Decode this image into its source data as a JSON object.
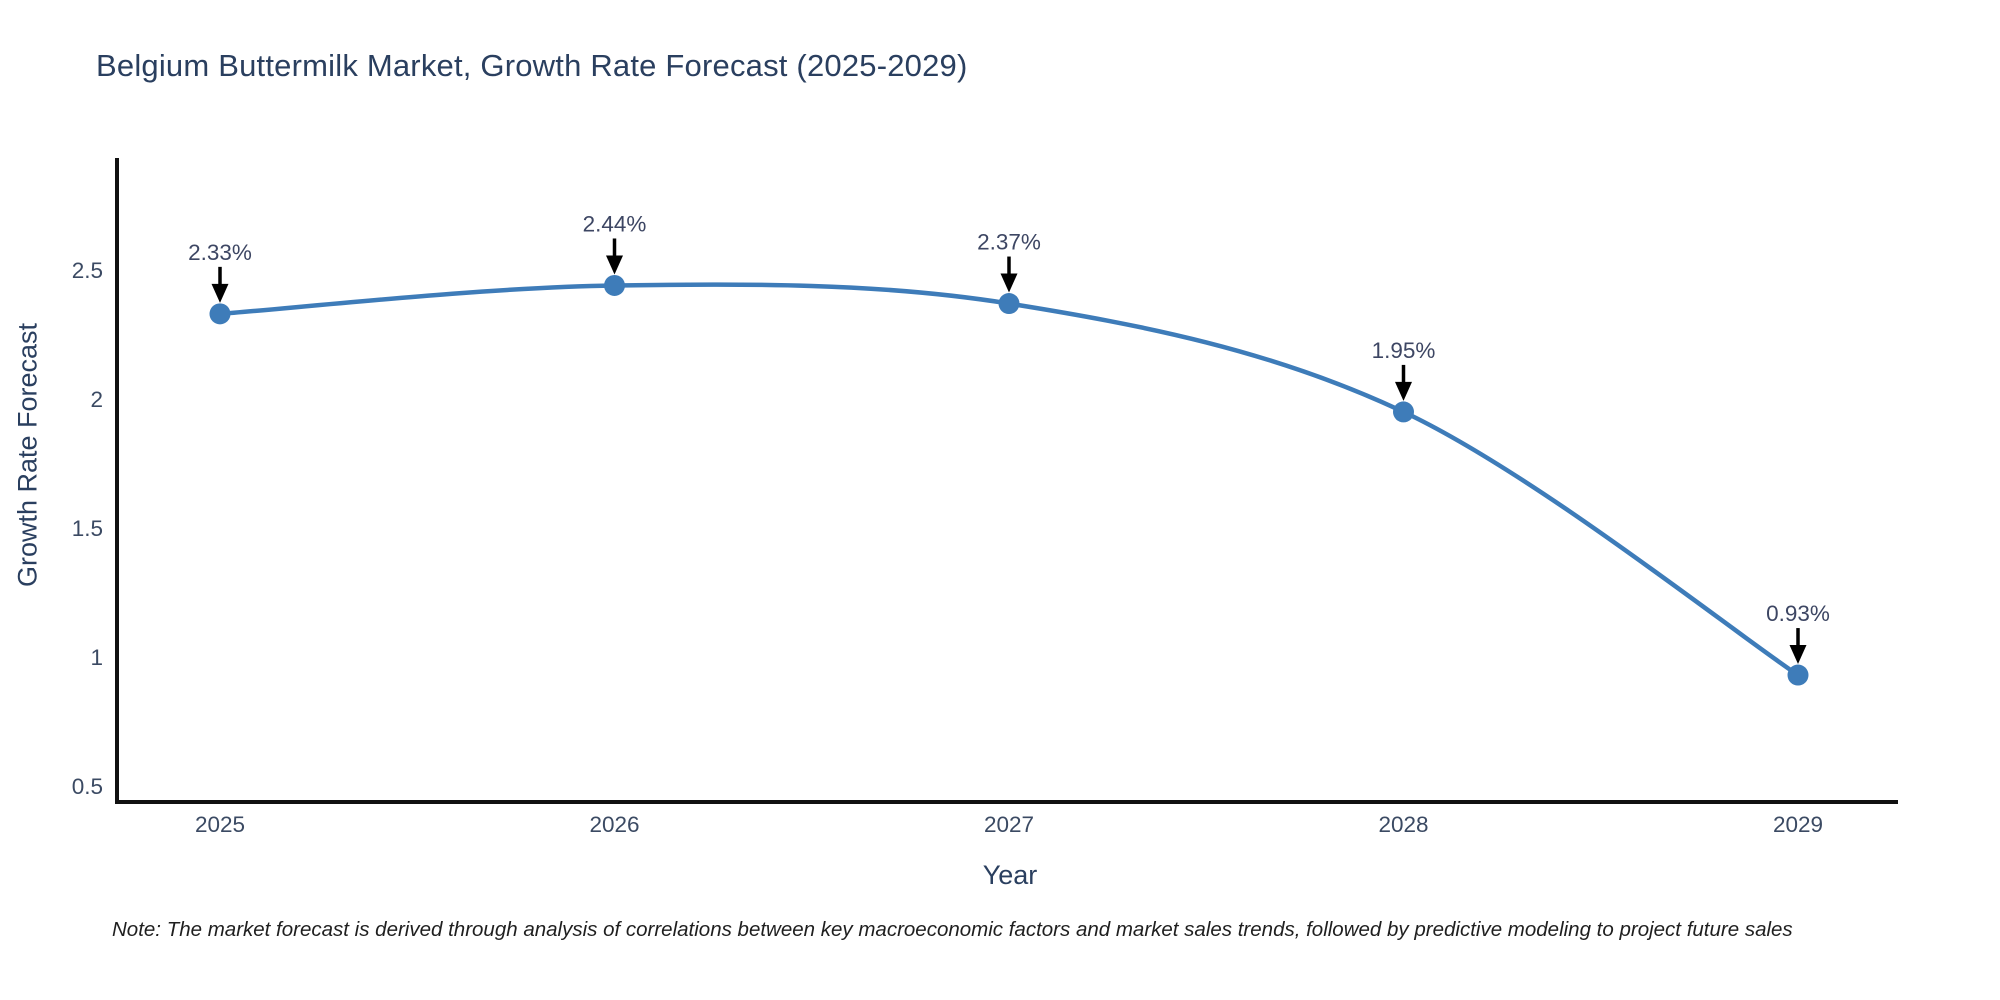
{
  "page": {
    "title": "Belgium Buttermilk Market, Growth Rate Forecast (2025-2029)",
    "note": "Note: The market forecast is derived through analysis of correlations between key macroeconomic factors and market sales trends, followed by predictive modeling to project future sales"
  },
  "chart_data": {
    "type": "line",
    "title": "Belgium Buttermilk Market, Growth Rate Forecast (2025-2029)",
    "xlabel": "Year",
    "ylabel": "Growth Rate Forecast",
    "x": [
      2025,
      2026,
      2027,
      2028,
      2029
    ],
    "y": [
      2.33,
      2.44,
      2.37,
      1.95,
      0.93
    ],
    "point_labels": [
      "2.33%",
      "2.44%",
      "2.37%",
      "1.95%",
      "0.93%"
    ],
    "x_tick_labels": [
      "2025",
      "2026",
      "2027",
      "2028",
      "2029"
    ],
    "y_ticks": [
      0.5,
      1,
      1.5,
      2,
      2.5
    ],
    "y_tick_labels": [
      "0.5",
      "1",
      "1.5",
      "2",
      "2.5"
    ],
    "xlim": [
      2024.74,
      2029.26
    ],
    "ylim": [
      0.44,
      2.93
    ],
    "grid": false,
    "legend": false,
    "line_shape": "spline",
    "markers": true,
    "annotations": "percentage value label with black down-arrow above each data point"
  },
  "style": {
    "line_color": "#3E7CB9",
    "marker_color": "#3E7CB9",
    "axis_color": "#111111",
    "arrow_color": "#000000",
    "title_color": "#2a3f5f",
    "tick_color": "#3b4a63",
    "annotation_color": "#3d4663",
    "background": "#ffffff"
  }
}
